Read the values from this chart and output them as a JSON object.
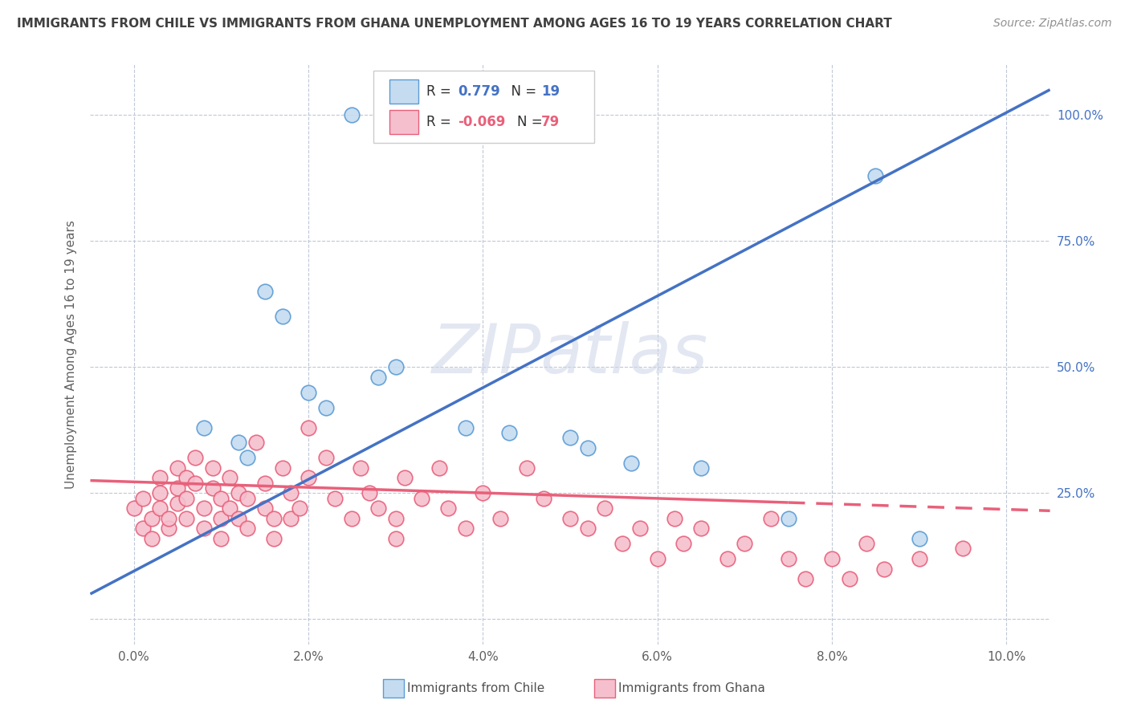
{
  "title": "IMMIGRANTS FROM CHILE VS IMMIGRANTS FROM GHANA UNEMPLOYMENT AMONG AGES 16 TO 19 YEARS CORRELATION CHART",
  "source": "Source: ZipAtlas.com",
  "ylabel": "Unemployment Among Ages 16 to 19 years",
  "yaxis_ticks": [
    0.0,
    0.25,
    0.5,
    0.75,
    1.0
  ],
  "yaxis_labels": [
    "",
    "25.0%",
    "50.0%",
    "75.0%",
    "100.0%"
  ],
  "xaxis_ticks": [
    0.0,
    0.02,
    0.04,
    0.06,
    0.08,
    0.1
  ],
  "xaxis_labels": [
    "0.0%",
    "2.0%",
    "4.0%",
    "6.0%",
    "8.0%",
    "10.0%"
  ],
  "R_chile": 0.779,
  "N_chile": 19,
  "R_ghana": -0.069,
  "N_ghana": 79,
  "chile_fill_color": "#c5dcf0",
  "chile_edge_color": "#5b9bd5",
  "ghana_fill_color": "#f5bfce",
  "ghana_edge_color": "#e8607a",
  "chile_line_color": "#4472c4",
  "ghana_line_color": "#e8607a",
  "right_label_color": "#4472c4",
  "watermark": "ZIPatlas",
  "watermark_color": "#ccd5e8",
  "background_color": "#ffffff",
  "grid_color": "#c0c8d8",
  "title_color": "#404040",
  "source_color": "#909090",
  "legend_border_color": "#cccccc",
  "chile_scatter_x": [
    0.025,
    0.015,
    0.017,
    0.008,
    0.012,
    0.013,
    0.02,
    0.022,
    0.028,
    0.03,
    0.038,
    0.043,
    0.05,
    0.052,
    0.057,
    0.065,
    0.075,
    0.085,
    0.09
  ],
  "chile_scatter_y": [
    1.0,
    0.65,
    0.6,
    0.38,
    0.35,
    0.32,
    0.45,
    0.42,
    0.48,
    0.5,
    0.38,
    0.37,
    0.36,
    0.34,
    0.31,
    0.3,
    0.2,
    0.88,
    0.16
  ],
  "ghana_scatter_x": [
    0.0,
    0.001,
    0.001,
    0.002,
    0.002,
    0.003,
    0.003,
    0.003,
    0.004,
    0.004,
    0.005,
    0.005,
    0.005,
    0.006,
    0.006,
    0.006,
    0.007,
    0.007,
    0.008,
    0.008,
    0.009,
    0.009,
    0.01,
    0.01,
    0.01,
    0.011,
    0.011,
    0.012,
    0.012,
    0.013,
    0.013,
    0.014,
    0.015,
    0.015,
    0.016,
    0.016,
    0.017,
    0.018,
    0.018,
    0.019,
    0.02,
    0.02,
    0.022,
    0.023,
    0.025,
    0.026,
    0.027,
    0.028,
    0.03,
    0.03,
    0.031,
    0.033,
    0.035,
    0.036,
    0.038,
    0.04,
    0.042,
    0.045,
    0.047,
    0.05,
    0.052,
    0.054,
    0.056,
    0.058,
    0.06,
    0.062,
    0.063,
    0.065,
    0.068,
    0.07,
    0.073,
    0.075,
    0.077,
    0.08,
    0.082,
    0.084,
    0.086,
    0.09,
    0.095
  ],
  "ghana_scatter_y": [
    0.22,
    0.18,
    0.24,
    0.2,
    0.16,
    0.25,
    0.28,
    0.22,
    0.18,
    0.2,
    0.3,
    0.26,
    0.23,
    0.28,
    0.24,
    0.2,
    0.32,
    0.27,
    0.22,
    0.18,
    0.26,
    0.3,
    0.24,
    0.2,
    0.16,
    0.22,
    0.28,
    0.2,
    0.25,
    0.24,
    0.18,
    0.35,
    0.27,
    0.22,
    0.2,
    0.16,
    0.3,
    0.25,
    0.2,
    0.22,
    0.28,
    0.38,
    0.32,
    0.24,
    0.2,
    0.3,
    0.25,
    0.22,
    0.16,
    0.2,
    0.28,
    0.24,
    0.3,
    0.22,
    0.18,
    0.25,
    0.2,
    0.3,
    0.24,
    0.2,
    0.18,
    0.22,
    0.15,
    0.18,
    0.12,
    0.2,
    0.15,
    0.18,
    0.12,
    0.15,
    0.2,
    0.12,
    0.08,
    0.12,
    0.08,
    0.15,
    0.1,
    0.12,
    0.14
  ],
  "chile_line_x0": -0.005,
  "chile_line_y0": 0.05,
  "chile_line_x1": 0.105,
  "chile_line_y1": 1.05,
  "ghana_line_x0": -0.005,
  "ghana_line_y0": 0.275,
  "ghana_line_x1": 0.105,
  "ghana_line_y1": 0.215,
  "ghana_line_dashed_x0": 0.075,
  "ghana_line_dashed_x1": 0.105,
  "xlim": [
    -0.005,
    0.105
  ],
  "ylim": [
    -0.05,
    1.1
  ]
}
